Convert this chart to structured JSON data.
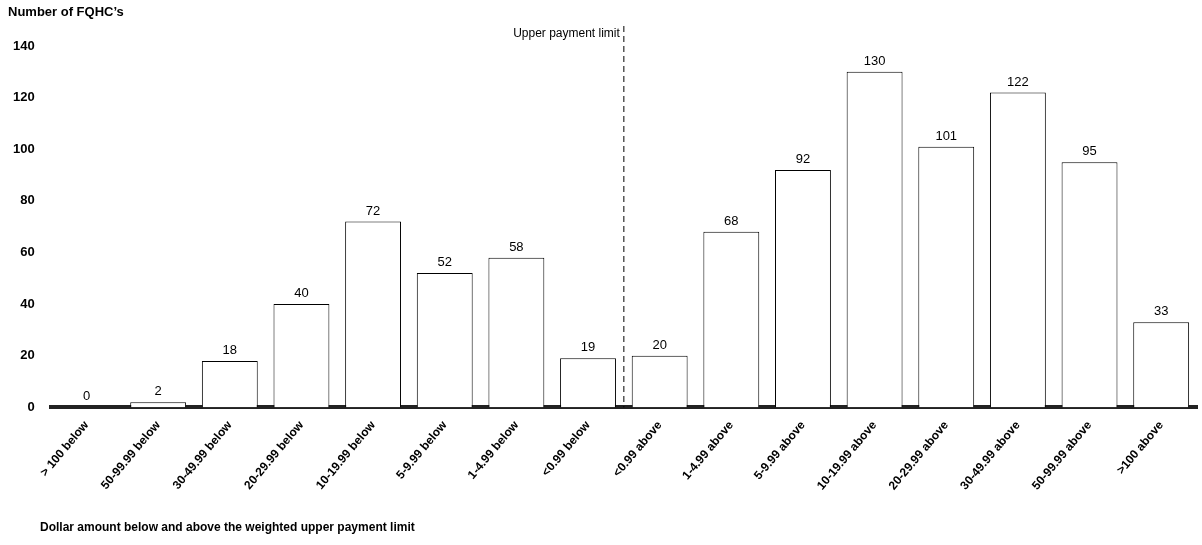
{
  "chart_data": {
    "type": "bar",
    "ylabel": "Number of FQHC’s",
    "xlabel": "Dollar amount below and above the weighted upper payment limit",
    "categories": [
      "> 100 below",
      "50-99.99 below",
      "30-49.99 below",
      "20-29.99 below",
      "10-19.99 below",
      "5-9.99 below",
      "1-4.99 below",
      "<0.99 below",
      "<0.99 above",
      "1-4.99 above",
      "5-9.99 above",
      "10-19.99 above",
      "20-29.99 above",
      "30-49.99 above",
      "50-99.99 above",
      ">100 above"
    ],
    "values": [
      0,
      2,
      18,
      40,
      72,
      52,
      58,
      19,
      20,
      68,
      92,
      130,
      101,
      122,
      95,
      33
    ],
    "color": "#ffffff",
    "ylim": [
      0,
      140
    ],
    "yticks": [
      0,
      20,
      40,
      60,
      80,
      100,
      120,
      140
    ],
    "annotations": [
      "Upper payment limit"
    ],
    "data_labels": true,
    "grid": false,
    "legend": false
  }
}
